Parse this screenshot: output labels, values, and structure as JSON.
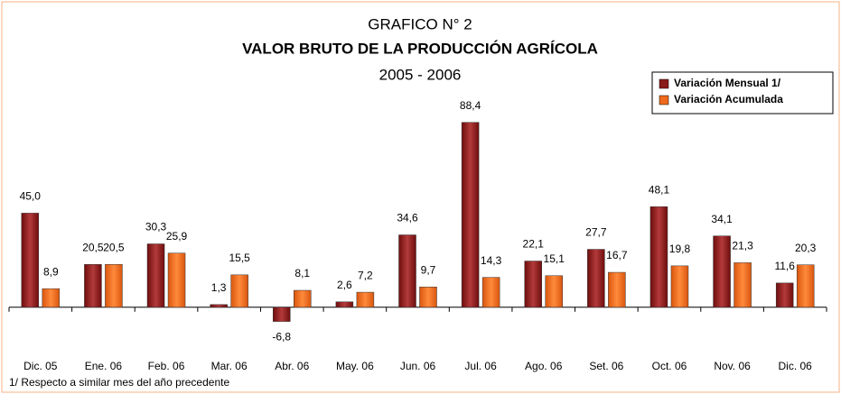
{
  "chart_data": {
    "type": "bar",
    "title": "VALOR BRUTO DE LA PRODUCCIÓN AGRÍCOLA",
    "pretitle": "GRAFICO N° 2",
    "subtitle": "2005 - 2006",
    "footnote": "1/ Respecto a similar mes del año precedente",
    "categories": [
      "Dic. 05",
      "Ene. 06",
      "Feb. 06",
      "Mar. 06",
      "Abr. 06",
      "May. 06",
      "Jun. 06",
      "Jul. 06",
      "Ago. 06",
      "Set. 06",
      "Oct. 06",
      "Nov. 06",
      "Dic. 06"
    ],
    "series": [
      {
        "name": "Variación Mensual 1/",
        "color": "#8b1a1a",
        "values": [
          45.0,
          20.5,
          30.3,
          1.3,
          -6.8,
          2.6,
          34.6,
          88.4,
          22.1,
          27.7,
          48.1,
          34.1,
          11.6
        ],
        "value_labels": [
          "45,0",
          "20,5",
          "30,3",
          "1,3",
          "-6,8",
          "2,6",
          "34,6",
          "88,4",
          "22,1",
          "27,7",
          "48,1",
          "34,1",
          "11,6"
        ]
      },
      {
        "name": "Variación Acumulada",
        "color": "#ef6a1c",
        "values": [
          8.9,
          20.5,
          25.9,
          15.5,
          8.1,
          7.2,
          9.7,
          14.3,
          15.1,
          16.7,
          19.8,
          21.3,
          20.3
        ],
        "value_labels": [
          "8,9",
          "20,5",
          "25,9",
          "15,5",
          "8,1",
          "7,2",
          "9,7",
          "14,3",
          "15,1",
          "16,7",
          "19,8",
          "21,3",
          "20,3"
        ]
      }
    ],
    "ylim": [
      -10,
      90
    ],
    "legend": "top-right"
  }
}
